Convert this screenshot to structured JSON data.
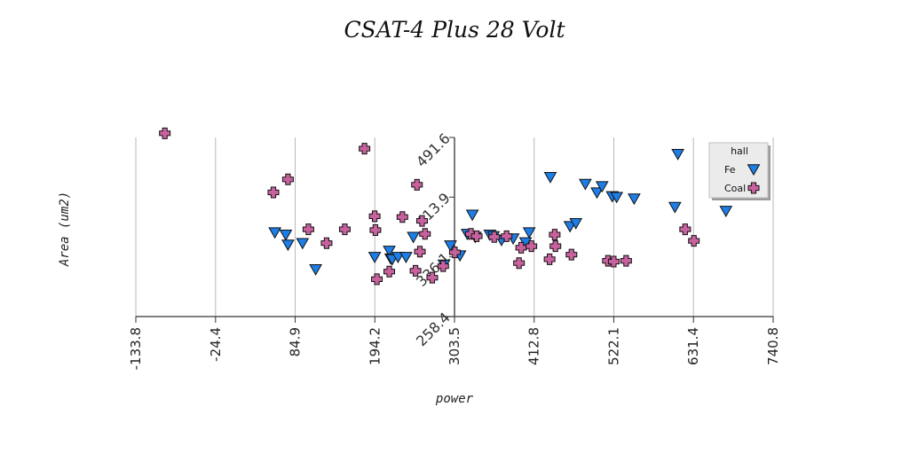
{
  "chart_data": {
    "type": "scatter",
    "title": "CSAT-4 Plus 28 Volt",
    "xlabel": "power",
    "ylabel": "Area (um2)",
    "xlim": [
      -133.8,
      740.8
    ],
    "ylim": [
      258.4,
      491.6
    ],
    "x_ticks": [
      "-133.8",
      "-24.4",
      "84.9",
      "194.2",
      "303.5",
      "412.8",
      "522.1",
      "631.4",
      "740.8"
    ],
    "y_ticks": [
      "258.4",
      "336.1",
      "413.9",
      "491.6"
    ],
    "grid": {
      "x": true,
      "y": false
    },
    "legend": {
      "title": "hall",
      "position": "top-right"
    },
    "colors": {
      "Fe": "#1e7ee8",
      "Coal": "#c8629e"
    },
    "series": [
      {
        "name": "Fe",
        "marker": "triangle-down",
        "points": [
          [
            57,
            368
          ],
          [
            72,
            365
          ],
          [
            75,
            352
          ],
          [
            95,
            354
          ],
          [
            113,
            320
          ],
          [
            194,
            336
          ],
          [
            214,
            344
          ],
          [
            216,
            334
          ],
          [
            218,
            333
          ],
          [
            226,
            336
          ],
          [
            237,
            336
          ],
          [
            247,
            362
          ],
          [
            289,
            326
          ],
          [
            298,
            351
          ],
          [
            311,
            338
          ],
          [
            321,
            366
          ],
          [
            328,
            391
          ],
          [
            332,
            362
          ],
          [
            352,
            365
          ],
          [
            357,
            363
          ],
          [
            368,
            358
          ],
          [
            384,
            360
          ],
          [
            401,
            355
          ],
          [
            406,
            368
          ],
          [
            435,
            440
          ],
          [
            462,
            376
          ],
          [
            470,
            380
          ],
          [
            483,
            431
          ],
          [
            499,
            420
          ],
          [
            506,
            428
          ],
          [
            520,
            415
          ],
          [
            526,
            414
          ],
          [
            550,
            412
          ],
          [
            606,
            401
          ],
          [
            610,
            470
          ],
          [
            676,
            396
          ]
        ]
      },
      {
        "name": "Coal",
        "marker": "plus",
        "points": [
          [
            -94,
            497
          ],
          [
            55,
            420
          ],
          [
            75,
            437
          ],
          [
            103,
            372
          ],
          [
            128,
            354
          ],
          [
            153,
            372
          ],
          [
            180,
            477
          ],
          [
            194,
            389
          ],
          [
            195,
            371
          ],
          [
            197,
            307
          ],
          [
            214,
            317
          ],
          [
            232,
            388
          ],
          [
            250,
            318
          ],
          [
            252,
            430
          ],
          [
            256,
            343
          ],
          [
            259,
            383
          ],
          [
            263,
            366
          ],
          [
            273,
            309
          ],
          [
            288,
            324
          ],
          [
            304,
            342
          ],
          [
            326,
            366
          ],
          [
            334,
            363
          ],
          [
            358,
            362
          ],
          [
            375,
            363
          ],
          [
            392,
            328
          ],
          [
            395,
            348
          ],
          [
            409,
            350
          ],
          [
            434,
            333
          ],
          [
            441,
            365
          ],
          [
            442,
            350
          ],
          [
            464,
            339
          ],
          [
            514,
            331
          ],
          [
            522,
            330
          ],
          [
            539,
            331
          ],
          [
            620,
            372
          ],
          [
            632,
            357
          ]
        ]
      }
    ]
  }
}
